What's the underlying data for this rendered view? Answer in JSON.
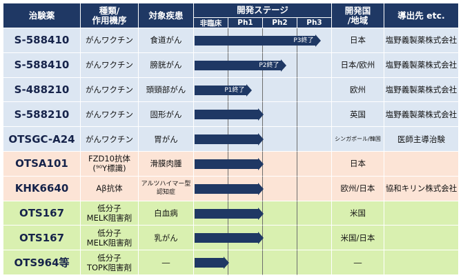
{
  "header": {
    "drug": "治験薬",
    "type": "種類/\n作用機序",
    "disease": "対象疾患",
    "stage": "開発ステージ",
    "stages": [
      "非臨床",
      "Ph1",
      "Ph2",
      "Ph3"
    ],
    "country": "開発国\n/地域",
    "licensee": "導出先 etc."
  },
  "colors": {
    "header": "#1f3864",
    "blue_row": "#dce6f2",
    "orange_row": "#fce4d6",
    "green_row": "#d9f0b0",
    "arrow": "#1f3864"
  },
  "rows": [
    {
      "drug": "S-588410",
      "type": "がんワクチン",
      "disease": "食道がん",
      "progress": 3.0,
      "arrow_label": "P3終了",
      "country": "日本",
      "licensee": "塩野義製薬株式会社",
      "group": "blue"
    },
    {
      "drug": "S-588410",
      "type": "がんワクチン",
      "disease": "膀胱がん",
      "progress": 2.0,
      "arrow_label": "P2終了",
      "country": "日本/欧州",
      "licensee": "塩野義製薬株式会社",
      "group": "blue"
    },
    {
      "drug": "S-488210",
      "type": "がんワクチン",
      "disease": "頭頸部がん",
      "progress": 1.0,
      "arrow_label": "P1終了",
      "country": "欧州",
      "licensee": "塩野義製薬株式会社",
      "group": "blue"
    },
    {
      "drug": "S-588210",
      "type": "がんワクチン",
      "disease": "固形がん",
      "progress": 1.35,
      "arrow_label": "",
      "country": "英国",
      "licensee": "塩野義製薬株式会社",
      "group": "blue"
    },
    {
      "drug": "OTSGC-A24",
      "type": "がんワクチン",
      "disease": "胃がん",
      "progress": 1.35,
      "arrow_label": "",
      "country": "シンガポール/韓国",
      "licensee": "医師主導治験",
      "group": "blue"
    },
    {
      "drug": "OTSA101",
      "type": "FZD10抗体\n(⁹⁰Y標識)",
      "disease": "滑膜肉腫",
      "progress": 1.35,
      "arrow_label": "",
      "country": "日本",
      "licensee": "",
      "group": "orange"
    },
    {
      "drug": "KHK6640",
      "type": "Aβ抗体",
      "disease": "アルツハイマー型\n認知症",
      "progress": 1.35,
      "arrow_label": "",
      "country": "欧州/日本",
      "licensee": "協和キリン株式会社",
      "group": "orange"
    },
    {
      "drug": "OTS167",
      "type": "低分子\nMELK阻害剤",
      "disease": "白血病",
      "progress": 1.35,
      "arrow_label": "",
      "country": "米国",
      "licensee": "",
      "group": "green"
    },
    {
      "drug": "OTS167",
      "type": "低分子\nMELK阻害剤",
      "disease": "乳がん",
      "progress": 1.35,
      "arrow_label": "",
      "country": "米国/日本",
      "licensee": "",
      "group": "green"
    },
    {
      "drug": "OTS964等",
      "type": "低分子\nTOPK阻害剤",
      "disease": "―",
      "progress": 0.35,
      "arrow_label": "",
      "country": "―",
      "licensee": "",
      "group": "green"
    }
  ]
}
